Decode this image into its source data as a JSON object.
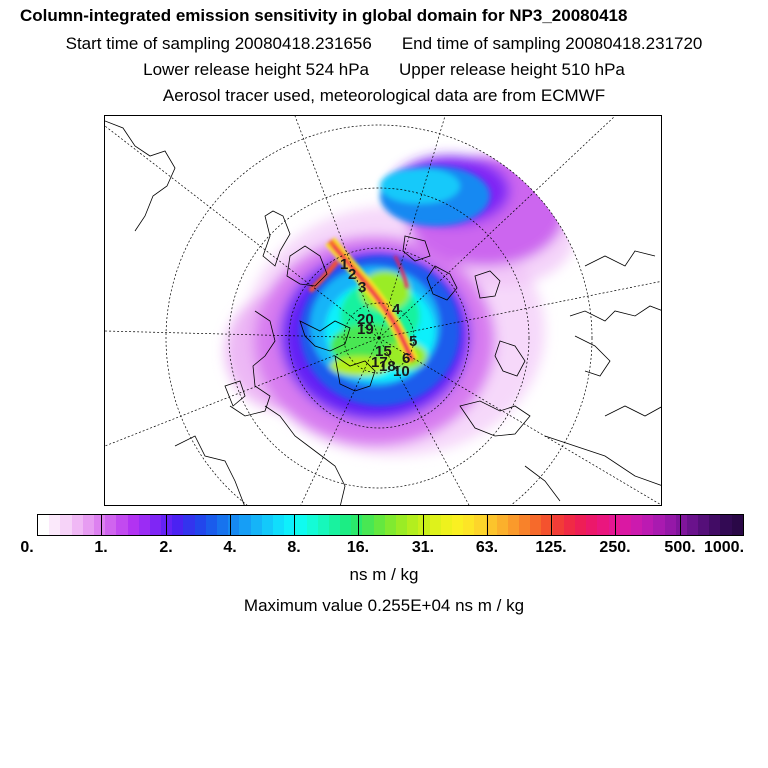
{
  "header": {
    "title": "Column-integrated emission sensitivity in global domain for NP3_20080418",
    "start_time": "Start time of sampling 20080418.231656",
    "end_time": "End time of sampling 20080418.231720",
    "lower_release": "Lower release height  524 hPa",
    "upper_release": "Upper release height  510 hPa",
    "tracer_info": "Aerosol tracer used, meteorological data are from ECMWF"
  },
  "colorbar": {
    "tick_labels": [
      "0.",
      "1.",
      "2.",
      "4.",
      "8.",
      "16.",
      "31.",
      "63.",
      "125.",
      "250.",
      "500.",
      "1000."
    ],
    "colors": [
      "#ffffff",
      "#fbe9fb",
      "#f6d3f8",
      "#f0b8f5",
      "#e79cf2",
      "#dd80f0",
      "#d064ef",
      "#c24af0",
      "#b233f2",
      "#9b2cf4",
      "#7f26f5",
      "#6422f5",
      "#4b22f2",
      "#3334ee",
      "#2246ec",
      "#1a5cec",
      "#1773ee",
      "#1689f2",
      "#169ef6",
      "#15b4f8",
      "#13c9fa",
      "#10defc",
      "#0ef0fc",
      "#0ffbf0",
      "#14fbd6",
      "#17f7bb",
      "#19f29f",
      "#1ced84",
      "#2ae96b",
      "#48e753",
      "#64e83f",
      "#80ea30",
      "#9aec25",
      "#b3ee1e",
      "#caf01a",
      "#def21b",
      "#eef21d",
      "#faf022",
      "#fde526",
      "#fdd52a",
      "#fcc42c",
      "#fbb02c",
      "#fa9a2b",
      "#f8822a",
      "#f66a2b",
      "#f4522e",
      "#f23c37",
      "#f02a45",
      "#ee1e56",
      "#ec186a",
      "#ea167e",
      "#e41692",
      "#da18a3",
      "#cc1aae",
      "#bc1ab2",
      "#a91ab0",
      "#9518a8",
      "#80159c",
      "#6a128c",
      "#550f79",
      "#420c65",
      "#330a54",
      "#2a0847"
    ],
    "units": "ns m / kg",
    "max_value": "Maximum value  0.255E+04 ns m / kg"
  },
  "map": {
    "projection": "polar stereographic (north polar)",
    "site_labels": [
      "1",
      "2",
      "3",
      "4",
      "5",
      "6",
      "10",
      "15",
      "17",
      "18",
      "19",
      "20"
    ]
  }
}
